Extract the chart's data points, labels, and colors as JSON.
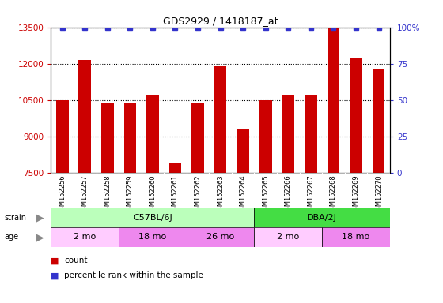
{
  "title": "GDS2929 / 1418187_at",
  "samples": [
    "GSM152256",
    "GSM152257",
    "GSM152258",
    "GSM152259",
    "GSM152260",
    "GSM152261",
    "GSM152262",
    "GSM152263",
    "GSM152264",
    "GSM152265",
    "GSM152266",
    "GSM152267",
    "GSM152268",
    "GSM152269",
    "GSM152270"
  ],
  "counts": [
    10500,
    12150,
    10400,
    10350,
    10700,
    7900,
    10400,
    11900,
    9300,
    10500,
    10700,
    10700,
    13450,
    12200,
    11800
  ],
  "percentile_ranks": [
    100,
    100,
    100,
    100,
    100,
    100,
    100,
    100,
    100,
    100,
    100,
    100,
    100,
    100,
    100
  ],
  "bar_color": "#cc0000",
  "dot_color": "#3333cc",
  "ylim_left": [
    7500,
    13500
  ],
  "ylim_right": [
    0,
    100
  ],
  "yticks_left": [
    7500,
    9000,
    10500,
    12000,
    13500
  ],
  "yticks_right": [
    0,
    25,
    50,
    75,
    100
  ],
  "strain_groups": [
    {
      "label": "C57BL/6J",
      "start": 0,
      "end": 9,
      "color": "#bbffbb"
    },
    {
      "label": "DBA/2J",
      "start": 9,
      "end": 15,
      "color": "#44dd44"
    }
  ],
  "age_groups": [
    {
      "label": "2 mo",
      "start": 0,
      "end": 3,
      "color": "#ffccff"
    },
    {
      "label": "18 mo",
      "start": 3,
      "end": 6,
      "color": "#ee88ee"
    },
    {
      "label": "26 mo",
      "start": 6,
      "end": 9,
      "color": "#ee88ee"
    },
    {
      "label": "2 mo",
      "start": 9,
      "end": 12,
      "color": "#ffccff"
    },
    {
      "label": "18 mo",
      "start": 12,
      "end": 15,
      "color": "#ee88ee"
    }
  ],
  "label_bg": "#cccccc",
  "background_color": "#ffffff",
  "left_axis_color": "#cc0000",
  "right_axis_color": "#3333cc",
  "strain_label_color": "#888888",
  "age_label_color": "#888888"
}
